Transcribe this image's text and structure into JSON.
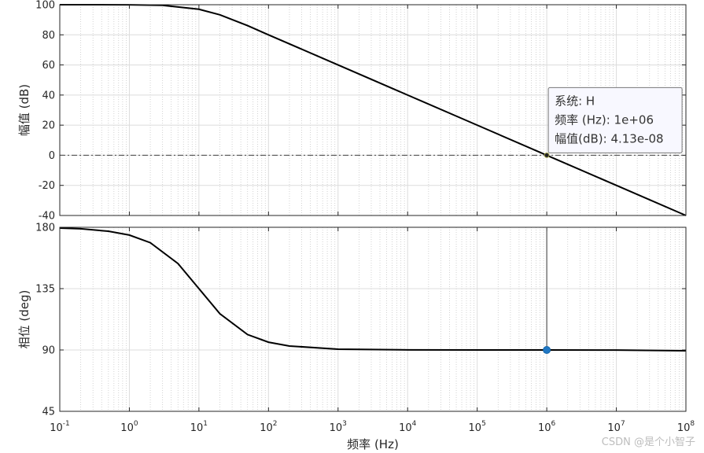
{
  "chart_data": [
    {
      "type": "line",
      "panel": "magnitude",
      "ylabel": "幅值 (dB)",
      "xscale": "log",
      "xlim": [
        0.1,
        100000000
      ],
      "ylim": [
        -40,
        100
      ],
      "yticks": [
        "100",
        "80",
        "60",
        "40",
        "20",
        "0",
        "-20",
        "-40"
      ],
      "grid": true,
      "series": [
        {
          "x": [
            0.1,
            0.3,
            1,
            3,
            10,
            20,
            50,
            100,
            1000,
            10000,
            100000,
            1000000,
            10000000,
            100000000
          ],
          "values": [
            100,
            100,
            99.96,
            99.6,
            97,
            93.3,
            86.1,
            80,
            60,
            40,
            20,
            0,
            -20,
            -40
          ]
        }
      ],
      "reference_line": {
        "y": 0,
        "style": "dash-dot"
      },
      "datatip": {
        "x": 1000000,
        "y": 0,
        "lines": [
          "系统: H",
          "频率 (Hz): 1e+06",
          "幅值(dB): 4.13e-08"
        ]
      }
    },
    {
      "type": "line",
      "panel": "phase",
      "ylabel": "相位 (deg)",
      "xlabel": "频率  (Hz)",
      "xscale": "log",
      "xlim": [
        0.1,
        100000000
      ],
      "ylim": [
        45,
        180
      ],
      "yticks": [
        "180",
        "135",
        "90",
        "45"
      ],
      "xticks": [
        {
          "base": "10",
          "exp": "-1"
        },
        {
          "base": "10",
          "exp": "0"
        },
        {
          "base": "10",
          "exp": "1"
        },
        {
          "base": "10",
          "exp": "2"
        },
        {
          "base": "10",
          "exp": "3"
        },
        {
          "base": "10",
          "exp": "4"
        },
        {
          "base": "10",
          "exp": "5"
        },
        {
          "base": "10",
          "exp": "6"
        },
        {
          "base": "10",
          "exp": "7"
        },
        {
          "base": "10",
          "exp": "8"
        }
      ],
      "grid": true,
      "series": [
        {
          "x": [
            0.1,
            0.2,
            0.5,
            1,
            2,
            5,
            10,
            20,
            50,
            100,
            200,
            1000,
            10000,
            100000,
            1000000,
            10000000,
            100000000
          ],
          "values": [
            179.4,
            178.9,
            177.1,
            174.3,
            168.7,
            153.4,
            135,
            116.6,
            101.3,
            95.7,
            92.9,
            90.6,
            90.06,
            90.0,
            90.0,
            89.9,
            89.4
          ]
        }
      ],
      "marker": {
        "x": 1000000,
        "y": 90
      }
    }
  ],
  "watermark": "CSDN @是个小智子"
}
